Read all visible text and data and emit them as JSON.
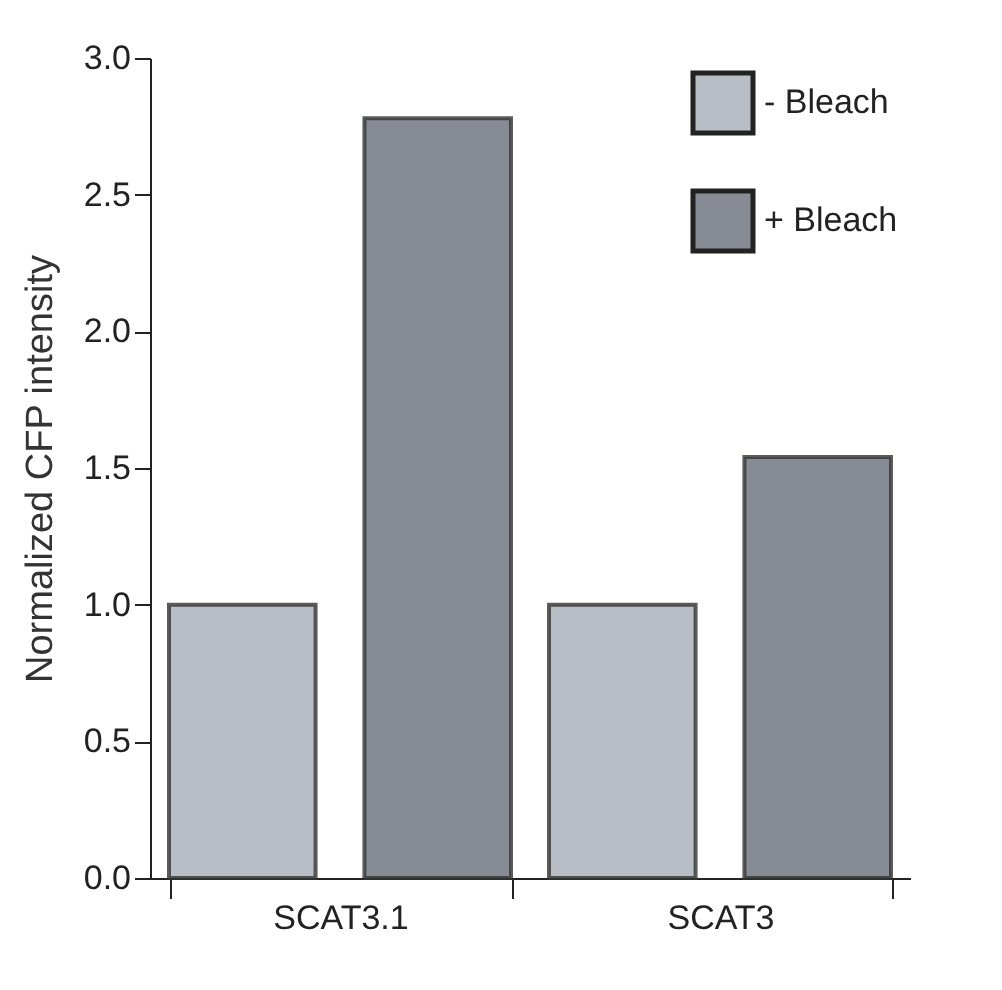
{
  "chart_data": {
    "type": "bar",
    "ylabel": "Normalized CFP intensity",
    "categories": [
      "SCAT3.1",
      "SCAT3"
    ],
    "series": [
      {
        "name": "- Bleach",
        "color": "#b9bec6",
        "values": [
          1.0,
          1.0
        ]
      },
      {
        "name": "+ Bleach",
        "color": "#878c94",
        "values": [
          2.78,
          1.54
        ]
      }
    ],
    "ylim": [
      0,
      3
    ],
    "yticks": [
      {
        "value": 0,
        "label": "0.0"
      },
      {
        "value": 0.5,
        "label": "0.5"
      },
      {
        "value": 1,
        "label": "1.0"
      },
      {
        "value": 1.5,
        "label": "1.5"
      },
      {
        "value": 2,
        "label": "2.0"
      },
      {
        "value": 2.5,
        "label": "2.5"
      },
      {
        "value": 3,
        "label": "3.0"
      }
    ],
    "legend": "top right",
    "grid": false
  }
}
